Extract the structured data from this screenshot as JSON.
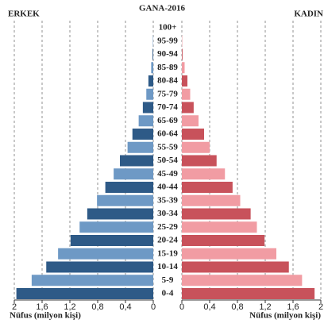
{
  "chart_data": {
    "type": "pyramid",
    "title": "GANA-2016",
    "x_label": "Nüfus (milyon kişi)",
    "categories": [
      "100+",
      "95-99",
      "90-94",
      "85-89",
      "80-84",
      "75-79",
      "70-74",
      "65-69",
      "60-64",
      "55-59",
      "50-54",
      "45-49",
      "40-44",
      "35-39",
      "30-34",
      "25-29",
      "20-24",
      "15-19",
      "10-14",
      "5-9",
      "0-4"
    ],
    "series": [
      {
        "name": "ERKEK",
        "side": "left",
        "colors": [
          "#2e5a87",
          "#6e99c5"
        ],
        "values": [
          0,
          0.005,
          0.01,
          0.03,
          0.07,
          0.1,
          0.15,
          0.21,
          0.3,
          0.37,
          0.48,
          0.57,
          0.69,
          0.81,
          0.95,
          1.06,
          1.19,
          1.37,
          1.54,
          1.75,
          1.97
        ]
      },
      {
        "name": "KADIN",
        "side": "right",
        "colors": [
          "#c8525b",
          "#f19ca3"
        ],
        "values": [
          0,
          0.005,
          0.01,
          0.04,
          0.08,
          0.12,
          0.17,
          0.24,
          0.32,
          0.4,
          0.5,
          0.62,
          0.73,
          0.84,
          0.99,
          1.08,
          1.19,
          1.36,
          1.54,
          1.73,
          1.91
        ]
      }
    ],
    "xlim": [
      0,
      2
    ],
    "xticks": [
      0,
      {
        "value": 0.4,
        "label": "0,4"
      },
      {
        "value": 0.8,
        "label": "0,8"
      },
      {
        "value": 1.2,
        "label": "1,2"
      },
      {
        "value": 1.6,
        "label": "1,6"
      },
      2
    ],
    "grid": true
  }
}
